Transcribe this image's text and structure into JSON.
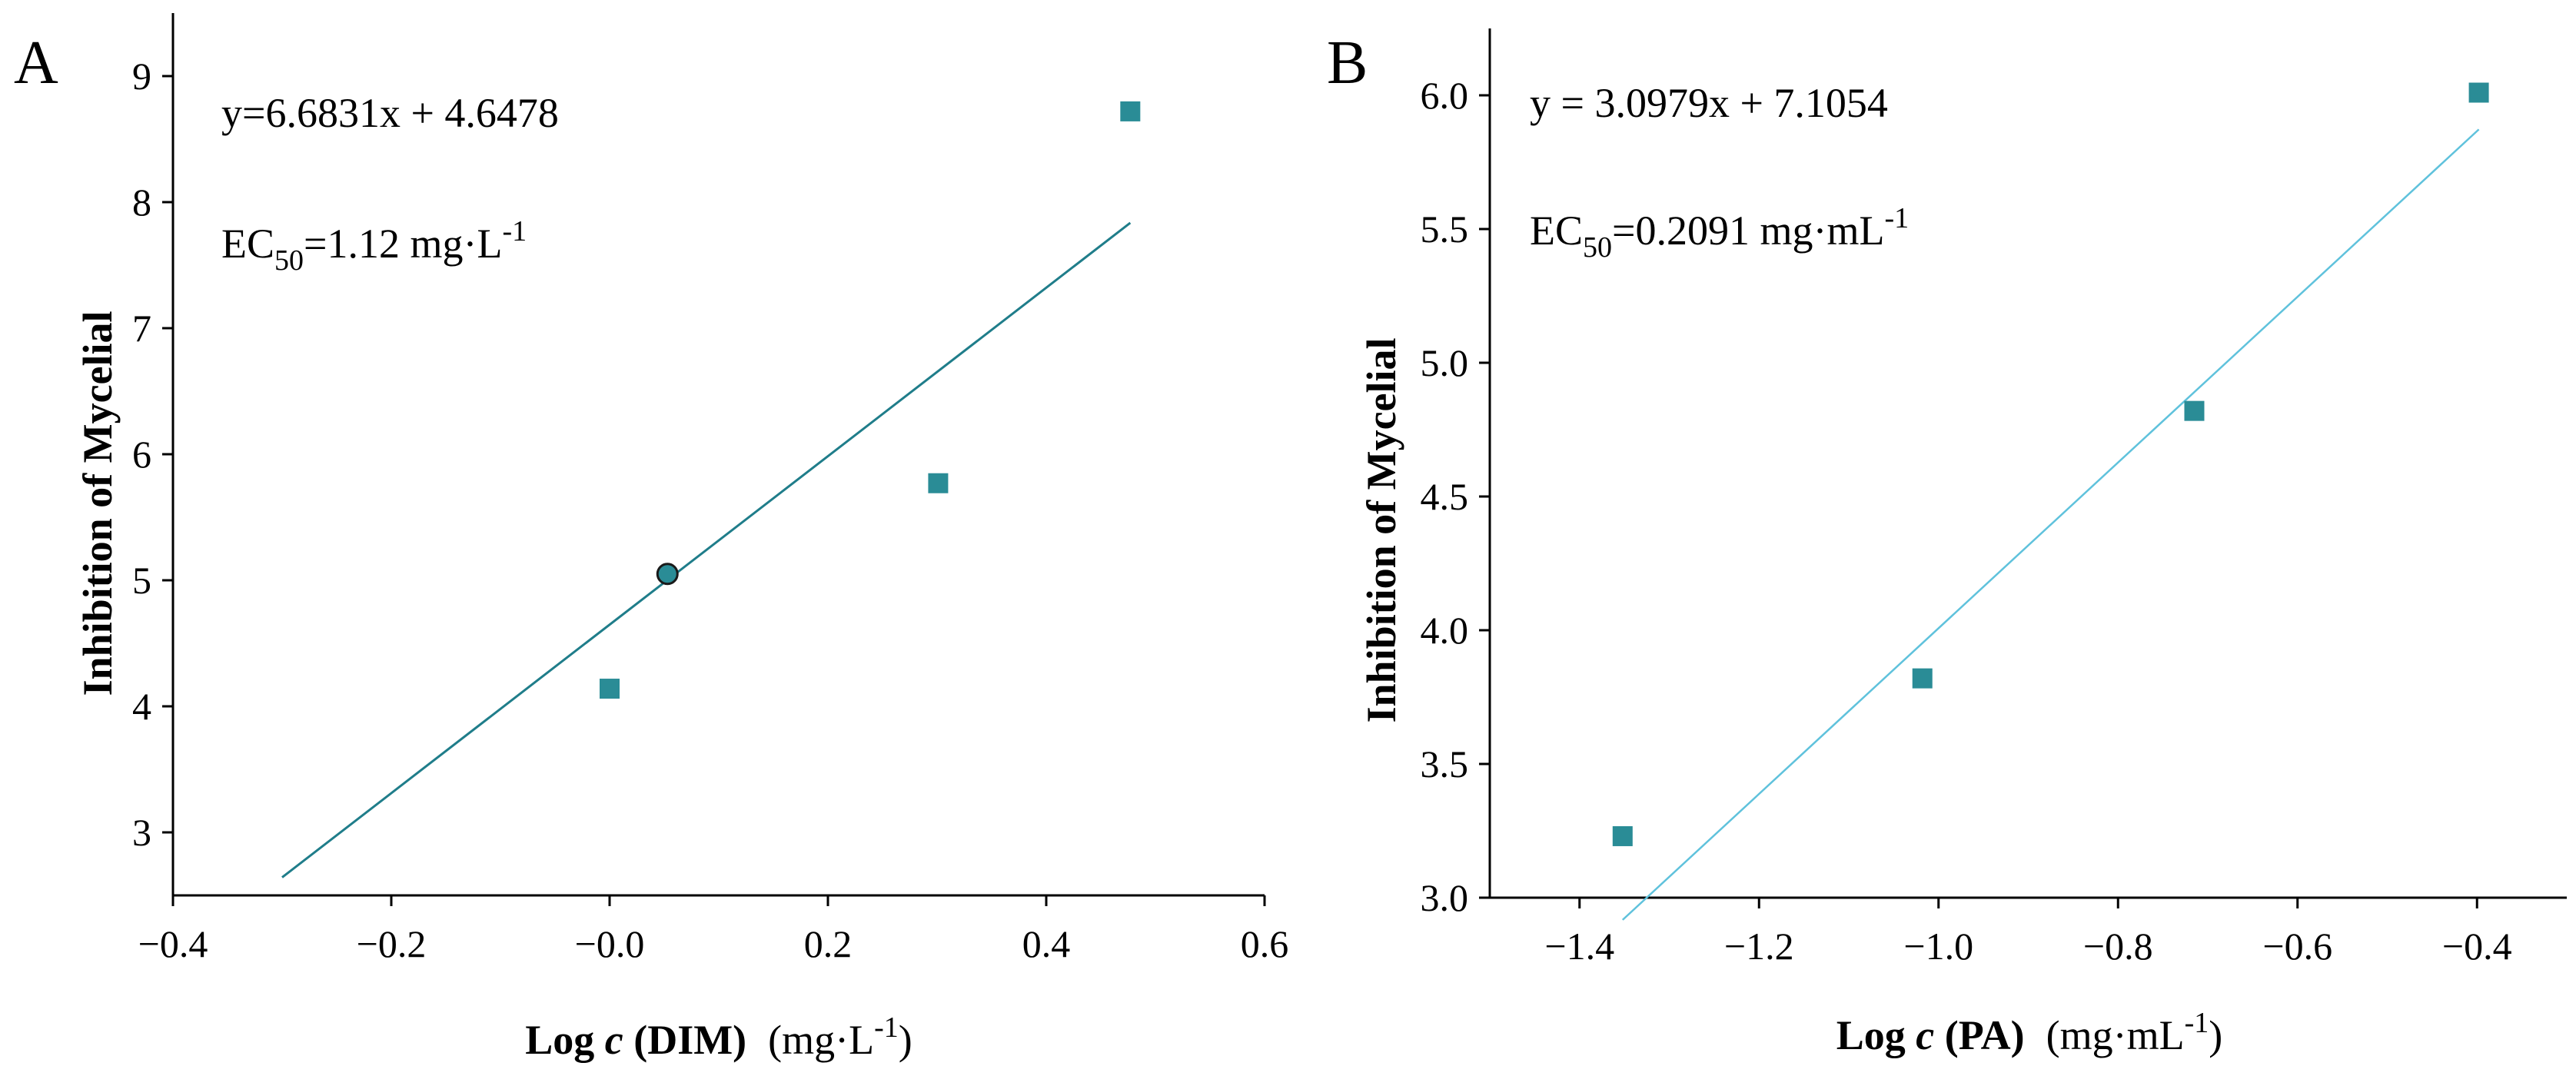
{
  "colors": {
    "marker": "#2a8c96",
    "lineA": "#1f7d8a",
    "lineB": "#5fc2dc",
    "axis": "#000000",
    "ec50_marker_edge": "#1a1a1a"
  },
  "chart_data": [
    {
      "panel": "A",
      "type": "scatter",
      "equation": "y=6.6831x + 4.6478",
      "ec50": {
        "prefix": "EC",
        "sub": "50",
        "value": "=1.12 mg·L",
        "sup": "-1"
      },
      "xlabel": {
        "main": "Log ",
        "italic": "c",
        "rest": " (DIM)",
        "unit": "(mg·L",
        "unit_sup": "-1",
        "unit_close": ")"
      },
      "ylabel": "Inhibition of  Mycelial",
      "xlim": [
        -0.4,
        0.6
      ],
      "ylim": [
        2.5,
        9.5
      ],
      "xticks": [
        -0.4,
        -0.2,
        0.0,
        0.2,
        0.4,
        0.6
      ],
      "xtick_labels": [
        "−0.4",
        "−0.2",
        "−0.0",
        "0.2",
        "0.4",
        "0.6"
      ],
      "yticks": [
        3,
        4,
        5,
        6,
        7,
        8,
        9
      ],
      "ytick_labels": [
        "3",
        "4",
        "5",
        "6",
        "7",
        "8",
        "9"
      ],
      "points": [
        {
          "x": 0.0,
          "y": 4.14
        },
        {
          "x": 0.301,
          "y": 5.77
        },
        {
          "x": 0.477,
          "y": 8.72
        }
      ],
      "fit": {
        "slope": 6.6831,
        "intercept": 4.6478,
        "x_range": [
          -0.3,
          0.477
        ]
      },
      "ec50_point": {
        "x": 0.053,
        "y": 5.05
      }
    },
    {
      "panel": "B",
      "type": "scatter",
      "equation": "y = 3.0979x + 7.1054",
      "ec50": {
        "prefix": "EC",
        "sub": "50",
        "value": "=0.2091 mg·mL",
        "sup": "-1"
      },
      "xlabel": {
        "main": "Log ",
        "italic": "c",
        "rest": " (PA)",
        "unit": "(mg·mL",
        "unit_sup": "-1",
        "unit_close": ")"
      },
      "ylabel": "Inhibition of  Mycelial",
      "xlim": [
        -1.5,
        -0.3
      ],
      "ylim": [
        3.0,
        6.25
      ],
      "xticks": [
        -1.4,
        -1.2,
        -1.0,
        -0.8,
        -0.6,
        -0.4
      ],
      "xtick_labels": [
        "−1.4",
        "−1.2",
        "−1.0",
        "−0.8",
        "−0.6",
        "−0.4"
      ],
      "yticks": [
        3.0,
        3.5,
        4.0,
        4.5,
        5.0,
        5.5,
        6.0
      ],
      "ytick_labels": [
        "3.0",
        "3.5",
        "4.0",
        "4.5",
        "5.0",
        "5.5",
        "6.0"
      ],
      "points": [
        {
          "x": -1.352,
          "y": 3.23
        },
        {
          "x": -1.018,
          "y": 3.82
        },
        {
          "x": -0.715,
          "y": 4.82
        },
        {
          "x": -0.398,
          "y": 6.01
        }
      ],
      "fit": {
        "slope": 3.0979,
        "intercept": 7.1054,
        "x_range": [
          -1.352,
          -0.398
        ]
      }
    }
  ]
}
